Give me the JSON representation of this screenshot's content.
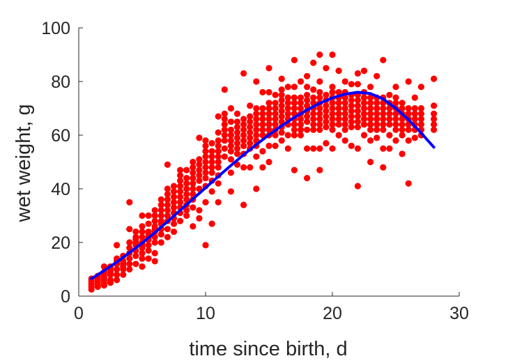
{
  "chart_data": {
    "type": "scatter",
    "xlabel": "time since birth, d",
    "ylabel": "wet weight, g",
    "xlim": [
      0,
      30
    ],
    "ylim": [
      0,
      100
    ],
    "xticks": [
      "0",
      "10",
      "20",
      "30"
    ],
    "yticks": [
      "0",
      "20",
      "40",
      "60",
      "80",
      "100"
    ],
    "grid": false,
    "colors": {
      "points": "#ff0000",
      "fit": "#0000ff",
      "axes": "#262626"
    },
    "series": [
      {
        "type": "scatter",
        "x": [
          1,
          1,
          1,
          1,
          1,
          1.5,
          1.5,
          1.5,
          1.5,
          1.5,
          2,
          2,
          2,
          2,
          2,
          2,
          2,
          2.5,
          2.5,
          2.5,
          2.5,
          2.5,
          2.5,
          3,
          3,
          3,
          3,
          3,
          3,
          3,
          3.5,
          3.5,
          3.5,
          3.5,
          3.5,
          3.5,
          4,
          4,
          4,
          4,
          4,
          4,
          4,
          4,
          4.5,
          4.5,
          4.5,
          4.5,
          4.5,
          4.5,
          4.5,
          4.5,
          5,
          5,
          5,
          5,
          5,
          5,
          5,
          5,
          5,
          5,
          5.5,
          5.5,
          5.5,
          5.5,
          5.5,
          5.5,
          5.5,
          5.5,
          5.5,
          6,
          6,
          6,
          6,
          6,
          6,
          6,
          6,
          6,
          6,
          6.5,
          6.5,
          6.5,
          6.5,
          6.5,
          6.5,
          6.5,
          6.5,
          6.5,
          7,
          7,
          7,
          7,
          7,
          7,
          7,
          7,
          7,
          7,
          7.5,
          7.5,
          7.5,
          7.5,
          7.5,
          7.5,
          7.5,
          7.5,
          7.5,
          8,
          8,
          8,
          8,
          8,
          8,
          8,
          8,
          8,
          8,
          8.5,
          8.5,
          8.5,
          8.5,
          8.5,
          8.5,
          8.5,
          8.5,
          8.5,
          9,
          9,
          9,
          9,
          9,
          9,
          9,
          9,
          9,
          9,
          9.5,
          9.5,
          9.5,
          9.5,
          9.5,
          9.5,
          9.5,
          9.5,
          9.5,
          10,
          10,
          10,
          10,
          10,
          10,
          10,
          10,
          10,
          10,
          10,
          10.5,
          10.5,
          10.5,
          10.5,
          10.5,
          10.5,
          10.5,
          10.5,
          10.5,
          11,
          11,
          11,
          11,
          11,
          11,
          11,
          11,
          11,
          11,
          11,
          11.5,
          11.5,
          11.5,
          11.5,
          11.5,
          11.5,
          11.5,
          11.5,
          11.5,
          12,
          12,
          12,
          12,
          12,
          12,
          12,
          12,
          12,
          12,
          12.5,
          12.5,
          12.5,
          12.5,
          12.5,
          12.5,
          12.5,
          12.5,
          12.5,
          13,
          13,
          13,
          13,
          13,
          13,
          13,
          13,
          13,
          13,
          13.5,
          13.5,
          13.5,
          13.5,
          13.5,
          13.5,
          13.5,
          13.5,
          13.5,
          14,
          14,
          14,
          14,
          14,
          14,
          14,
          14,
          14,
          14,
          14,
          14.5,
          14.5,
          14.5,
          14.5,
          14.5,
          14.5,
          14.5,
          14.5,
          14.5,
          15,
          15,
          15,
          15,
          15,
          15,
          15,
          15,
          15,
          15,
          15,
          15.5,
          15.5,
          15.5,
          15.5,
          15.5,
          15.5,
          15.5,
          15.5,
          15.5,
          16,
          16,
          16,
          16,
          16,
          16,
          16,
          16,
          16,
          16,
          16,
          16.5,
          16.5,
          16.5,
          16.5,
          16.5,
          16.5,
          16.5,
          16.5,
          16.5,
          17,
          17,
          17,
          17,
          17,
          17,
          17,
          17,
          17,
          17,
          17,
          17.5,
          17.5,
          17.5,
          17.5,
          17.5,
          17.5,
          17.5,
          17.5,
          17.5,
          18,
          18,
          18,
          18,
          18,
          18,
          18,
          18,
          18,
          18,
          18,
          18.5,
          18.5,
          18.5,
          18.5,
          18.5,
          18.5,
          18.5,
          18.5,
          18.5,
          18.5,
          19,
          19,
          19,
          19,
          19,
          19,
          19,
          19,
          19,
          19,
          19,
          19,
          19.5,
          19.5,
          19.5,
          19.5,
          19.5,
          19.5,
          19.5,
          19.5,
          19.5,
          20,
          20,
          20,
          20,
          20,
          20,
          20,
          20,
          20,
          20,
          20,
          20.5,
          20.5,
          20.5,
          20.5,
          20.5,
          20.5,
          20.5,
          20.5,
          20.5,
          21,
          21,
          21,
          21,
          21,
          21,
          21,
          21,
          21,
          21,
          21.5,
          21.5,
          21.5,
          21.5,
          21.5,
          21.5,
          21.5,
          21.5,
          21.5,
          22,
          22,
          22,
          22,
          22,
          22,
          22,
          22,
          22,
          22,
          22,
          22.5,
          22.5,
          22.5,
          22.5,
          22.5,
          22.5,
          22.5,
          22.5,
          22.5,
          23,
          23,
          23,
          23,
          23,
          23,
          23,
          23,
          23,
          23,
          23.5,
          23.5,
          23.5,
          23.5,
          23.5,
          23.5,
          23.5,
          23.5,
          23.5,
          24,
          24,
          24,
          24,
          24,
          24,
          24,
          24,
          24,
          24,
          24.5,
          24.5,
          24.5,
          24.5,
          24.5,
          24.5,
          24.5,
          24.5,
          25,
          25,
          25,
          25,
          25,
          25,
          25,
          25,
          25,
          25.5,
          25.5,
          25.5,
          25.5,
          25.5,
          25.5,
          25.5,
          25.5,
          26,
          26,
          26,
          26,
          26,
          26,
          26,
          26,
          26.5,
          26.5,
          26.5,
          26.5,
          26.5,
          26.5,
          26.5,
          27,
          27,
          27,
          27,
          27,
          27,
          27,
          28,
          28,
          28,
          28,
          28,
          28
        ],
        "y": [
          2.5,
          3.5,
          4.5,
          5.5,
          6.5,
          4.5,
          5.5,
          6.5,
          7.5,
          3.5,
          4,
          5,
          6,
          7,
          8,
          9,
          11,
          5,
          6,
          8,
          9,
          10,
          11,
          6,
          8,
          10,
          12,
          13,
          14,
          19,
          8,
          10,
          11,
          12,
          13,
          15,
          10,
          12,
          14,
          16,
          18,
          20,
          25,
          35,
          12,
          15,
          17,
          19,
          20,
          21,
          22,
          24,
          11,
          14,
          16,
          18,
          19,
          20,
          22,
          24,
          26,
          30,
          14,
          17,
          19,
          21,
          22,
          23,
          24,
          27,
          30,
          13,
          16,
          20,
          22,
          24,
          25,
          26,
          28,
          30,
          32,
          20,
          23,
          25,
          27,
          28,
          30,
          32,
          34,
          36,
          22,
          25,
          28,
          30,
          32,
          34,
          36,
          38,
          40,
          49,
          24,
          27,
          29,
          31,
          33,
          35,
          37,
          39,
          41,
          28,
          31,
          33,
          35,
          37,
          39,
          41,
          43,
          45,
          47,
          30,
          32,
          34,
          36,
          38,
          40,
          42,
          44,
          47,
          26,
          33,
          36,
          38,
          40,
          42,
          44,
          46,
          48,
          50,
          29,
          32,
          40,
          43,
          45,
          47,
          49,
          51,
          59,
          19,
          35,
          41,
          44,
          46,
          48,
          50,
          52,
          54,
          56,
          58,
          27,
          39,
          43,
          46,
          48,
          50,
          52,
          54,
          57,
          35,
          42,
          45,
          48,
          50,
          52,
          54,
          56,
          58,
          61,
          67,
          52,
          55,
          58,
          60,
          62,
          64,
          66,
          68,
          77,
          39,
          46,
          51,
          54,
          56,
          58,
          60,
          62,
          65,
          70,
          49,
          53,
          55,
          57,
          59,
          61,
          63,
          65,
          68,
          34,
          48,
          53,
          56,
          58,
          60,
          62,
          64,
          66,
          83,
          48,
          55,
          57,
          59,
          61,
          63,
          65,
          67,
          71,
          40,
          52,
          56,
          58,
          60,
          62,
          64,
          66,
          68,
          70,
          80,
          48,
          54,
          60,
          62,
          64,
          66,
          68,
          70,
          76,
          50,
          56,
          60,
          62,
          64,
          66,
          68,
          70,
          72,
          76,
          85,
          56,
          60,
          62,
          64,
          66,
          68,
          70,
          72,
          75,
          58,
          61,
          63,
          65,
          67,
          69,
          71,
          73,
          75,
          77,
          81,
          55,
          60,
          64,
          66,
          68,
          70,
          72,
          74,
          78,
          47,
          60,
          62,
          64,
          66,
          68,
          70,
          72,
          74,
          78,
          88,
          60,
          62,
          64,
          66,
          68,
          70,
          72,
          74,
          80,
          44,
          55,
          62,
          65,
          67,
          69,
          71,
          73,
          75,
          78,
          82,
          55,
          62,
          64,
          66,
          68,
          70,
          72,
          74,
          77,
          87,
          47,
          55,
          62,
          64,
          66,
          68,
          70,
          72,
          74,
          76,
          80,
          90,
          57,
          63,
          65,
          67,
          69,
          71,
          73,
          75,
          85,
          55,
          62,
          64,
          66,
          68,
          70,
          72,
          74,
          76,
          78,
          90,
          60,
          64,
          66,
          68,
          70,
          72,
          74,
          76,
          84,
          58,
          62,
          64,
          66,
          68,
          70,
          72,
          74,
          76,
          80,
          56,
          63,
          65,
          67,
          69,
          71,
          73,
          75,
          79,
          41,
          55,
          63,
          65,
          67,
          69,
          71,
          73,
          75,
          79,
          83,
          60,
          64,
          66,
          68,
          70,
          72,
          74,
          76,
          84,
          50,
          58,
          62,
          64,
          66,
          68,
          70,
          72,
          74,
          78,
          59,
          62,
          64,
          66,
          68,
          70,
          72,
          74,
          82,
          48,
          55,
          62,
          64,
          66,
          68,
          70,
          72,
          74,
          88,
          55,
          60,
          64,
          66,
          68,
          70,
          72,
          75,
          58,
          62,
          64,
          66,
          68,
          70,
          72,
          74,
          78,
          53,
          60,
          62,
          64,
          66,
          68,
          70,
          72,
          42,
          58,
          62,
          64,
          66,
          68,
          70,
          80,
          59,
          62,
          64,
          66,
          68,
          70,
          74,
          60,
          62,
          64,
          66,
          68,
          70,
          78,
          62,
          64,
          66,
          68,
          71,
          81
        ]
      },
      {
        "type": "line",
        "x": [
          1,
          2,
          3,
          4,
          5,
          6,
          7,
          8,
          9,
          10,
          11,
          12,
          13,
          14,
          15,
          16,
          17,
          18,
          19,
          20,
          21,
          22,
          23,
          24,
          25,
          26,
          27,
          28
        ],
        "y": [
          6.5,
          9.5,
          12.7,
          16.2,
          19.8,
          23.7,
          27.8,
          32,
          36.2,
          40.4,
          44.6,
          48.7,
          52.7,
          56.5,
          60.1,
          63.5,
          66.6,
          69.4,
          71.9,
          73.9,
          75.3,
          76,
          75.5,
          73.5,
          70,
          65.8,
          60.8,
          55.5
        ]
      }
    ]
  }
}
